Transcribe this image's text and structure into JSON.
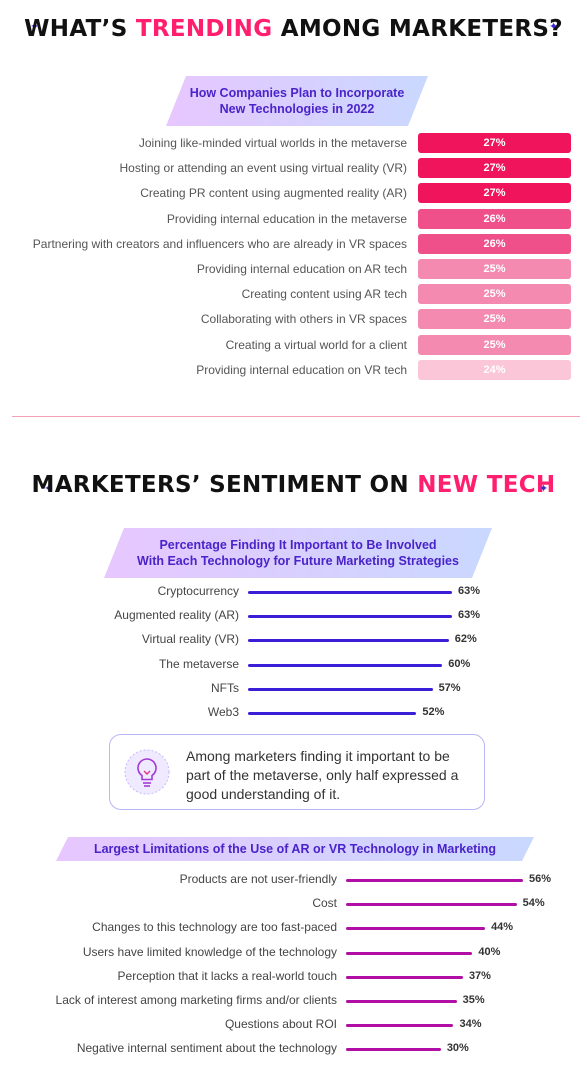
{
  "section1": {
    "title_part1": "WHAT’S ",
    "title_highlight": "TRENDING",
    "title_part2": " AMONG MARKETERS?",
    "banner_line1": "How Companies Plan to Incorporate",
    "banner_line2": "New Technologies in 2022"
  },
  "section2": {
    "title_part1": "MARKETERS’ SENTIMENT ON ",
    "title_highlight": "NEW TECH",
    "banner_line1": "Percentage Finding It Important to Be Involved",
    "banner_line2": "With Each Technology for Future Marketing Strategies",
    "callout_text": "Among marketers finding it important to be part of the metaverse, only half expressed a good understanding of it.",
    "banner3": "Largest Limitations of the Use of AR or VR Technology in Marketing"
  },
  "colors": {
    "accent_pink": "#ff1f6e",
    "indigo": "#3b1fd6",
    "magenta": "#b10ea6",
    "pink_scale": [
      "#f0145d",
      "#f0508a",
      "#f58ab0",
      "#fac6d8"
    ]
  },
  "chart_data": [
    {
      "type": "bar",
      "title": "How Companies Plan to Incorporate New Technologies in 2022",
      "categories": [
        "Joining like-minded virtual worlds in the metaverse",
        "Hosting or attending an event using virtual reality (VR)",
        "Creating PR content using augmented reality (AR)",
        "Providing internal education in the metaverse",
        "Partnering with creators and influencers who are already in VR spaces",
        "Providing internal education on AR tech",
        "Creating content using AR tech",
        "Collaborating with others in VR spaces",
        "Creating a virtual world for a client",
        "Providing internal education on VR tech"
      ],
      "values": [
        27,
        27,
        27,
        26,
        26,
        25,
        25,
        25,
        25,
        24
      ],
      "value_labels": [
        "27%",
        "27%",
        "27%",
        "26%",
        "26%",
        "25%",
        "25%",
        "25%",
        "25%",
        "24%"
      ]
    },
    {
      "type": "bar",
      "title": "Percentage Finding It Important to Be Involved With Each Technology for Future Marketing Strategies",
      "categories": [
        "Cryptocurrency",
        "Augmented reality (AR)",
        "Virtual reality (VR)",
        "The metaverse",
        "NFTs",
        "Web3"
      ],
      "values": [
        63,
        63,
        62,
        60,
        57,
        52
      ],
      "value_labels": [
        "63%",
        "63%",
        "62%",
        "60%",
        "57%",
        "52%"
      ]
    },
    {
      "type": "bar",
      "title": "Largest Limitations of the Use of AR or VR Technology in Marketing",
      "categories": [
        "Products are not user-friendly",
        "Cost",
        "Changes to this technology are too fast-paced",
        "Users have limited knowledge of the technology",
        "Perception that it lacks a real-world touch",
        "Lack of interest among marketing firms and/or clients",
        "Questions about ROI",
        "Negative internal sentiment about the technology"
      ],
      "values": [
        56,
        54,
        44,
        40,
        37,
        35,
        34,
        30
      ],
      "value_labels": [
        "56%",
        "54%",
        "44%",
        "40%",
        "37%",
        "35%",
        "34%",
        "30%"
      ]
    }
  ]
}
